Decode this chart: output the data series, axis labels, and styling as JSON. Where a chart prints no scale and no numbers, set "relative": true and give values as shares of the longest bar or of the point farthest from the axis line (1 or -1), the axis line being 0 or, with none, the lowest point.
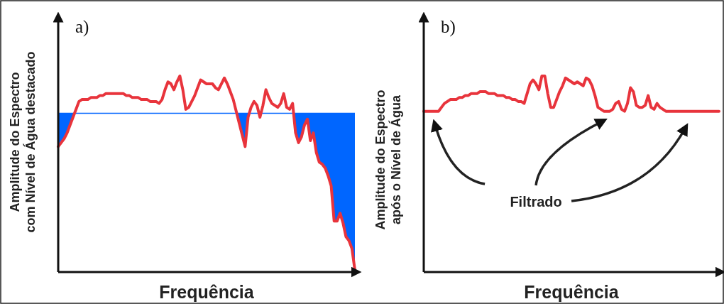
{
  "chart_data": [
    {
      "type": "line",
      "title": "a)",
      "xlabel": "Frequência",
      "ylabel": "Amplitude do Espectro\ncom Nível de Água destacado",
      "relative": true,
      "tick_labels": false,
      "categories": [
        null,
        null,
        null,
        null,
        null,
        null,
        null,
        null,
        null,
        null,
        null,
        null,
        null,
        null,
        null,
        null,
        null,
        null,
        null,
        null,
        null,
        null,
        null,
        null,
        null,
        null,
        null,
        null,
        null,
        null,
        null,
        null,
        null,
        null,
        null,
        null,
        null,
        null,
        null,
        null,
        null,
        null,
        null,
        null,
        null,
        null,
        null,
        null,
        null,
        null,
        null,
        null,
        null,
        null,
        null,
        null,
        null,
        null,
        null,
        null,
        null,
        null,
        null,
        null,
        null,
        null,
        null,
        null,
        null,
        null,
        null,
        null,
        null,
        null,
        null,
        null,
        null,
        null,
        null,
        null,
        null,
        null,
        null,
        null,
        null,
        null,
        null,
        null,
        null,
        null,
        null,
        null,
        null,
        null,
        null,
        null,
        null,
        null,
        null,
        null,
        null
      ],
      "ref_lines": [
        {
          "axis": "y",
          "value": 0.81,
          "color": "#0066ff"
        }
      ],
      "series": [
        {
          "color": "#e8343c",
          "values": [
            0.64,
            0.66,
            0.68,
            0.71,
            0.75,
            0.79,
            0.83,
            0.87,
            0.88,
            0.88,
            0.88,
            0.89,
            0.89,
            0.89,
            0.9,
            0.9,
            0.91,
            0.91,
            0.91,
            0.91,
            0.91,
            0.91,
            0.91,
            0.9,
            0.9,
            0.89,
            0.89,
            0.89,
            0.88,
            0.88,
            0.88,
            0.87,
            0.87,
            0.87,
            0.86,
            0.88,
            0.93,
            0.97,
            0.96,
            0.93,
            0.97,
            1,
            0.93,
            0.83,
            0.84,
            0.87,
            0.9,
            0.94,
            0.98,
            0.97,
            0.96,
            0.96,
            0.96,
            0.94,
            0.93,
            0.96,
            0.99,
            0.96,
            0.92,
            0.88,
            0.82,
            0.76,
            0.7,
            0.64,
            0.79,
            0.84,
            0.87,
            0.85,
            0.79,
            0.85,
            0.93,
            0.89,
            0.86,
            0.85,
            0.84,
            0.86,
            0.91,
            0.84,
            0.83,
            0.86,
            0.71,
            0.66,
            0.69,
            0.75,
            0.78,
            0.67,
            0.71,
            0.61,
            0.56,
            0.55,
            0.53,
            0.49,
            0.44,
            0.26,
            0.26,
            0.3,
            0.25,
            0.18,
            0.16,
            0.12,
            0.01
          ]
        }
      ]
    },
    {
      "type": "line",
      "title": "b)",
      "xlabel": "Frequência",
      "ylabel": "Amplitude do Espectro\napós o Nível de Água",
      "relative": true,
      "tick_labels": false,
      "annotations": [
        "Filtrado"
      ],
      "categories": [
        null,
        null,
        null,
        null,
        null,
        null,
        null,
        null,
        null,
        null,
        null,
        null,
        null,
        null,
        null,
        null,
        null,
        null,
        null,
        null,
        null,
        null,
        null,
        null,
        null,
        null,
        null,
        null,
        null,
        null,
        null,
        null,
        null,
        null,
        null,
        null,
        null,
        null,
        null,
        null,
        null,
        null,
        null,
        null,
        null,
        null,
        null,
        null,
        null,
        null,
        null,
        null,
        null,
        null,
        null,
        null,
        null,
        null,
        null,
        null,
        null,
        null,
        null,
        null,
        null,
        null,
        null,
        null,
        null,
        null,
        null,
        null,
        null,
        null,
        null,
        null,
        null,
        null,
        null,
        null,
        null,
        null,
        null,
        null,
        null,
        null,
        null,
        null,
        null,
        null,
        null,
        null,
        null,
        null,
        null,
        null,
        null,
        null,
        null,
        null,
        null
      ],
      "series": [
        {
          "color": "#e8343c",
          "values": [
            0.82,
            0.82,
            0.82,
            0.82,
            0.82,
            0.82,
            0.84,
            0.86,
            0.87,
            0.88,
            0.88,
            0.88,
            0.89,
            0.89,
            0.9,
            0.9,
            0.91,
            0.91,
            0.91,
            0.92,
            0.92,
            0.92,
            0.91,
            0.91,
            0.91,
            0.9,
            0.9,
            0.9,
            0.89,
            0.89,
            0.88,
            0.88,
            0.87,
            0.87,
            0.86,
            0.91,
            0.96,
            0.98,
            0.96,
            0.93,
            1,
            1,
            0.91,
            0.84,
            0.84,
            0.88,
            0.92,
            0.95,
            0.99,
            0.98,
            0.97,
            0.96,
            0.97,
            0.96,
            0.95,
            0.99,
            0.98,
            0.95,
            0.9,
            0.84,
            0.83,
            0.82,
            0.82,
            0.82,
            0.83,
            0.86,
            0.87,
            0.83,
            0.82,
            0.86,
            0.94,
            0.92,
            0.85,
            0.84,
            0.84,
            0.85,
            0.9,
            0.84,
            0.83,
            0.86,
            0.84,
            0.83,
            0.82,
            0.82,
            0.82,
            0.82,
            0.82,
            0.82,
            0.82,
            0.82,
            0.82,
            0.82,
            0.82,
            0.82,
            0.82,
            0.82,
            0.82,
            0.82,
            0.82,
            0.82,
            0.82
          ]
        }
      ]
    }
  ]
}
